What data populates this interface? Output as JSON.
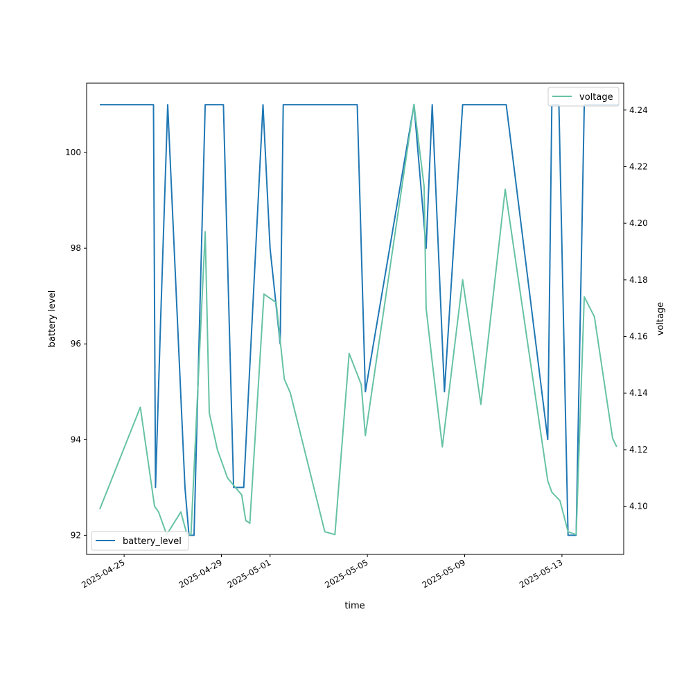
{
  "chart_data": {
    "type": "line",
    "title": "",
    "xlabel": "time",
    "ylabel": "battery level",
    "y2label": "voltage",
    "x_ticks": [
      "2025-04-25",
      "2025-04-29",
      "2025-05-01",
      "2025-05-05",
      "2025-05-09",
      "2025-05-13"
    ],
    "ylim": [
      91.6,
      101.45
    ],
    "y_ticks": [
      92,
      94,
      96,
      98,
      100
    ],
    "y2lim": [
      4.083,
      4.2495
    ],
    "y2_ticks": [
      4.1,
      4.12,
      4.14,
      4.16,
      4.18,
      4.2,
      4.22,
      4.24
    ],
    "legends": {
      "battery_level": "lower-left",
      "voltage": "upper-right"
    },
    "series": [
      {
        "name": "battery_level",
        "axis": "left",
        "color": "#1f77b4",
        "points": [
          [
            "2025-04-24 00:00",
            101
          ],
          [
            "2025-04-26 05:00",
            101
          ],
          [
            "2025-04-26 07:00",
            93
          ],
          [
            "2025-04-26 12:00",
            96.5
          ],
          [
            "2025-04-26 19:00",
            101
          ],
          [
            "2025-04-27 12:00",
            93
          ],
          [
            "2025-04-27 16:00",
            92
          ],
          [
            "2025-04-27 21:00",
            92
          ],
          [
            "2025-04-28 08:00",
            101
          ],
          [
            "2025-04-29 02:00",
            101
          ],
          [
            "2025-04-29 12:00",
            93
          ],
          [
            "2025-04-29 22:00",
            93
          ],
          [
            "2025-04-30 17:00",
            101
          ],
          [
            "2025-05-01 00:00",
            98
          ],
          [
            "2025-05-01 10:00",
            96
          ],
          [
            "2025-05-01 13:00",
            101
          ],
          [
            "2025-05-04 14:00",
            101
          ],
          [
            "2025-05-04 22:00",
            95
          ],
          [
            "2025-05-05 06:00",
            96
          ],
          [
            "2025-05-06 22:00",
            101
          ],
          [
            "2025-05-07 10:00",
            98
          ],
          [
            "2025-05-07 16:00",
            101
          ],
          [
            "2025-05-08 04:00",
            95
          ],
          [
            "2025-05-08 22:00",
            101
          ],
          [
            "2025-05-10 17:00",
            101
          ],
          [
            "2025-05-12 10:00",
            94
          ],
          [
            "2025-05-12 14:00",
            101
          ],
          [
            "2025-05-12 21:00",
            101
          ],
          [
            "2025-05-13 06:00",
            92
          ],
          [
            "2025-05-13 14:00",
            92
          ],
          [
            "2025-05-13 22:00",
            101
          ],
          [
            "2025-05-15 08:00",
            101
          ]
        ]
      },
      {
        "name": "voltage",
        "axis": "right",
        "color": "#66c2a5",
        "points": [
          [
            "2025-04-24 00:00",
            4.099
          ],
          [
            "2025-04-25 16:00",
            4.135
          ],
          [
            "2025-04-26 06:00",
            4.1
          ],
          [
            "2025-04-26 10:00",
            4.098
          ],
          [
            "2025-04-26 18:00",
            4.09
          ],
          [
            "2025-04-27 08:00",
            4.098
          ],
          [
            "2025-04-27 14:00",
            4.09
          ],
          [
            "2025-04-27 18:00",
            4.09
          ],
          [
            "2025-04-28 08:00",
            4.197
          ],
          [
            "2025-04-28 12:00",
            4.133
          ],
          [
            "2025-04-28 20:00",
            4.12
          ],
          [
            "2025-04-29 06:00",
            4.11
          ],
          [
            "2025-04-29 20:00",
            4.104
          ],
          [
            "2025-04-30 00:00",
            4.095
          ],
          [
            "2025-04-30 04:00",
            4.094
          ],
          [
            "2025-04-30 18:00",
            4.175
          ],
          [
            "2025-05-01 06:00",
            4.172
          ],
          [
            "2025-05-01 14:00",
            4.145
          ],
          [
            "2025-05-01 20:00",
            4.14
          ],
          [
            "2025-05-03 06:00",
            4.091
          ],
          [
            "2025-05-03 16:00",
            4.09
          ],
          [
            "2025-05-04 06:00",
            4.154
          ],
          [
            "2025-05-04 18:00",
            4.143
          ],
          [
            "2025-05-04 22:00",
            4.125
          ],
          [
            "2025-05-06 22:00",
            4.242
          ],
          [
            "2025-05-07 08:00",
            4.213
          ],
          [
            "2025-05-07 10:00",
            4.17
          ],
          [
            "2025-05-07 16:00",
            4.151
          ],
          [
            "2025-05-08 02:00",
            4.121
          ],
          [
            "2025-05-08 22:00",
            4.18
          ],
          [
            "2025-05-09 16:00",
            4.136
          ],
          [
            "2025-05-10 16:00",
            4.212
          ],
          [
            "2025-05-12 10:00",
            4.109
          ],
          [
            "2025-05-12 14:00",
            4.105
          ],
          [
            "2025-05-12 22:00",
            4.102
          ],
          [
            "2025-05-13 06:00",
            4.091
          ],
          [
            "2025-05-13 14:00",
            4.09
          ],
          [
            "2025-05-13 22:00",
            4.174
          ],
          [
            "2025-05-14 08:00",
            4.167
          ],
          [
            "2025-05-15 02:00",
            4.124
          ],
          [
            "2025-05-15 06:00",
            4.121
          ]
        ]
      }
    ]
  }
}
